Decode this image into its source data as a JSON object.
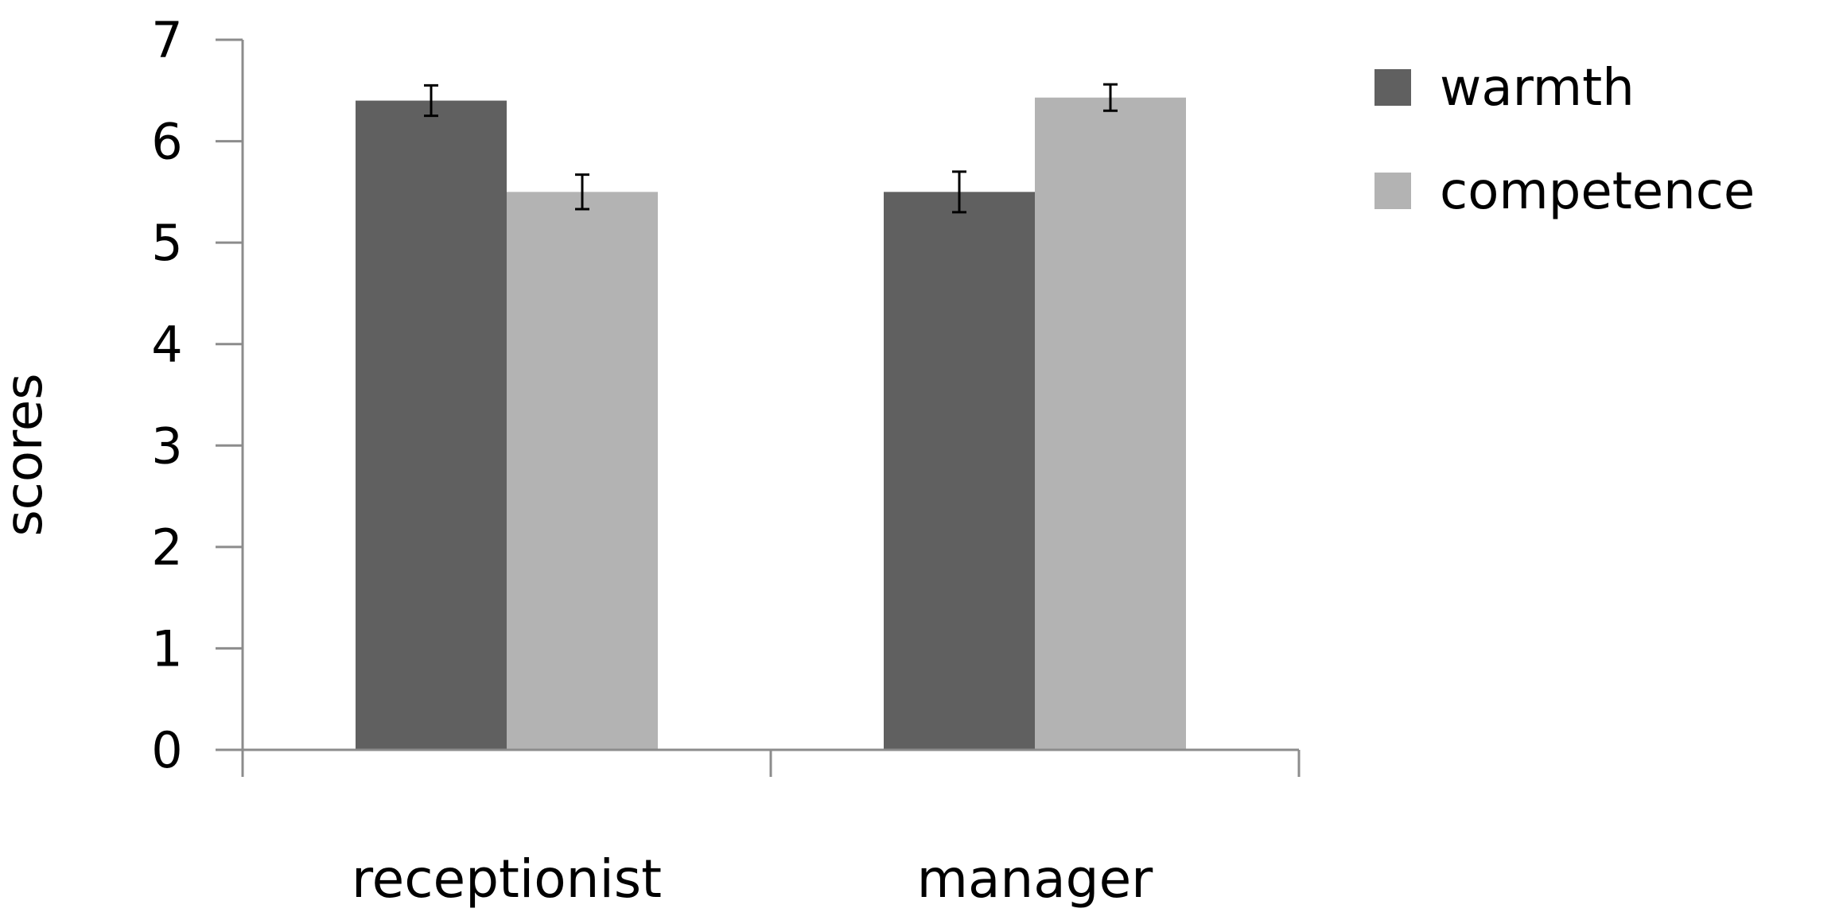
{
  "chart_data": {
    "type": "bar",
    "title": "",
    "xlabel": "",
    "ylabel": "scores",
    "ylim": [
      0,
      7
    ],
    "yticks": [
      0,
      1,
      2,
      3,
      4,
      5,
      6,
      7
    ],
    "grid": false,
    "legend_position": "top-right",
    "categories": [
      "receptionist",
      "manager"
    ],
    "series": [
      {
        "name": "warmth",
        "color": "#606060",
        "values": [
          6.4,
          5.5
        ],
        "error": [
          0.15,
          0.2
        ]
      },
      {
        "name": "competence",
        "color": "#b3b3b3",
        "values": [
          5.5,
          6.43
        ],
        "error": [
          0.17,
          0.13
        ]
      }
    ],
    "axis_color": "#8c8c8c",
    "error_bar_color": "#000000"
  }
}
